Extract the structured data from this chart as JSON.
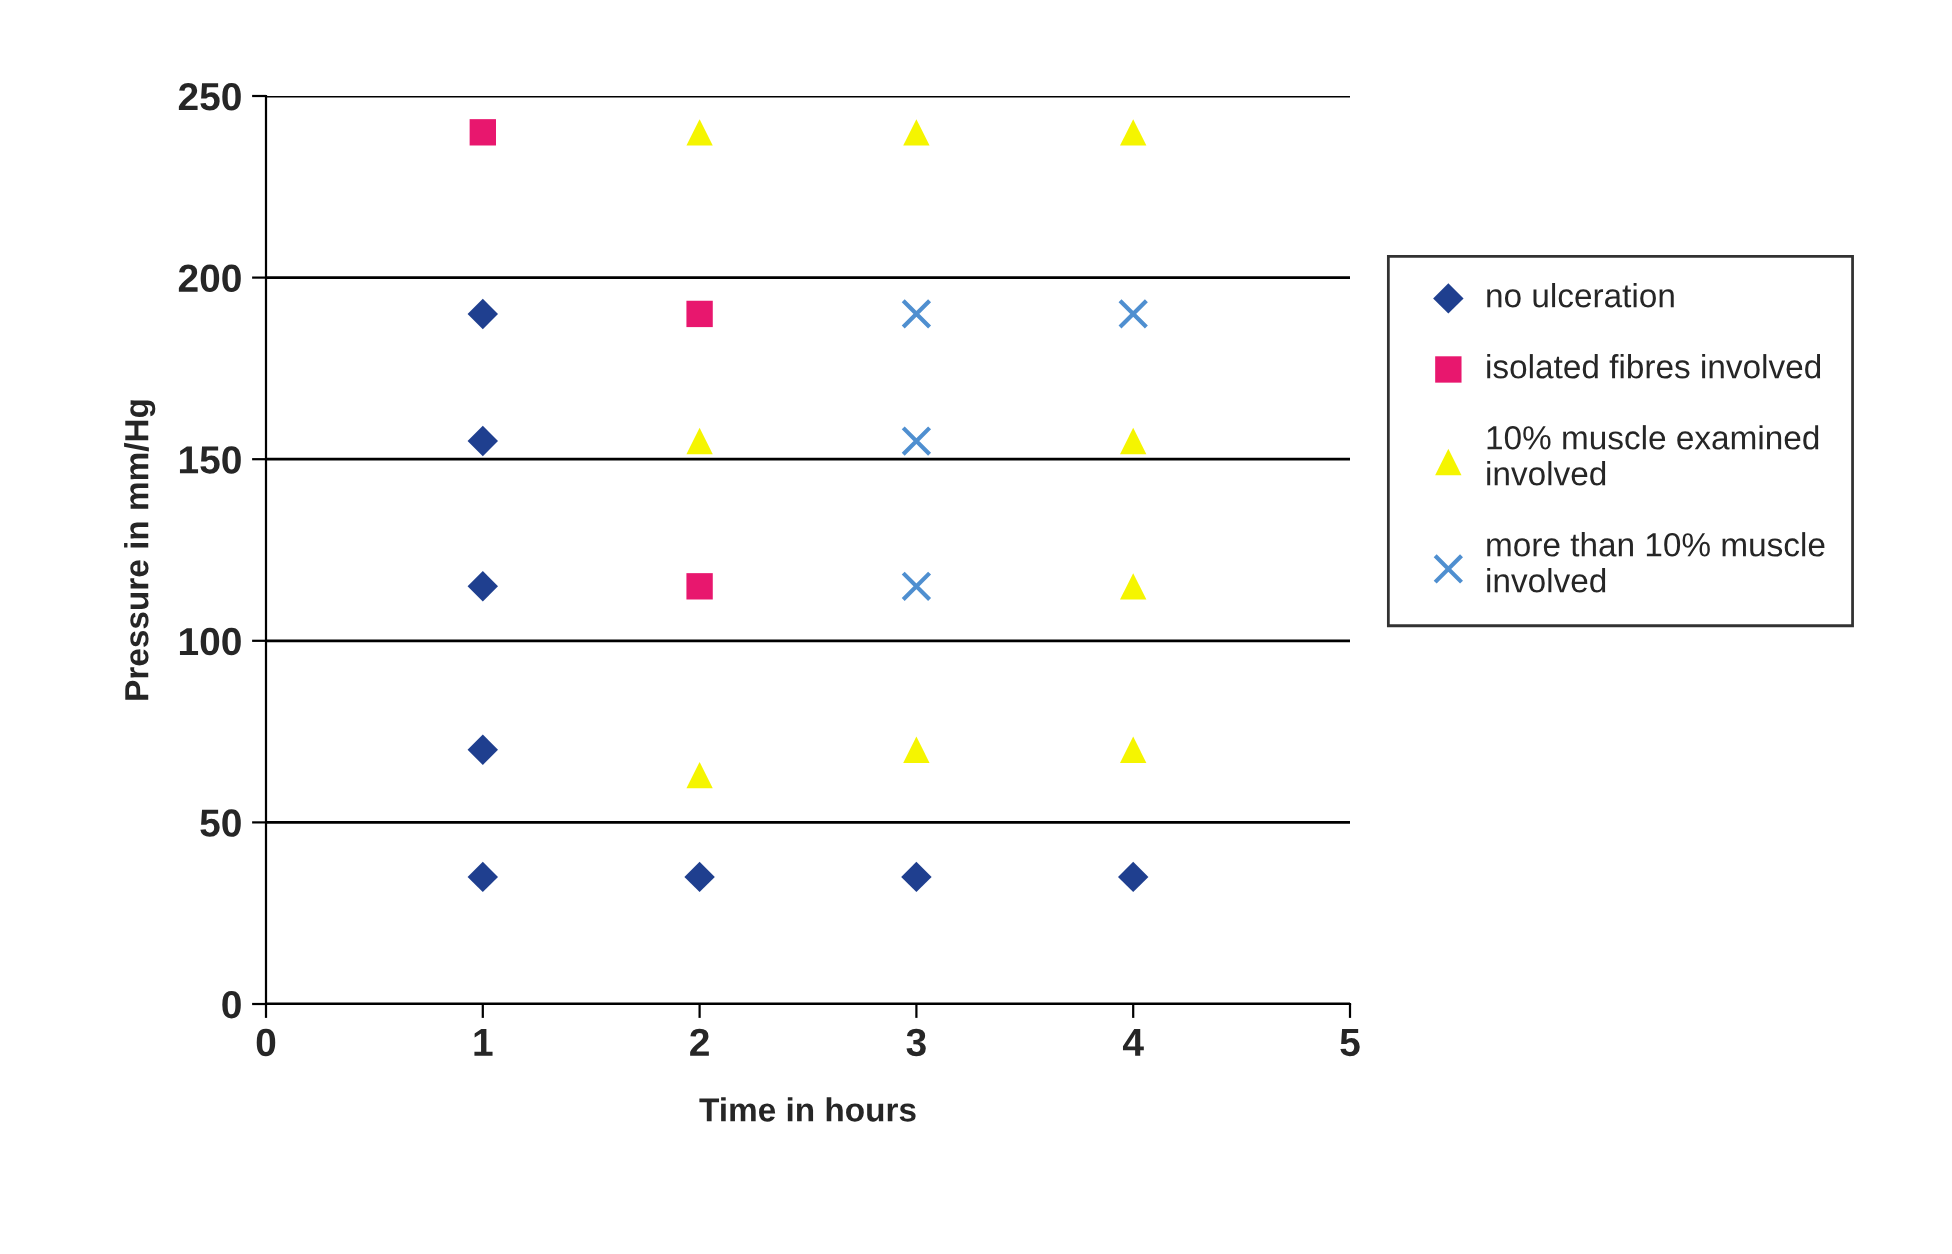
{
  "chart_data": {
    "type": "scatter",
    "xlabel": "Time in hours",
    "ylabel": "Pressure in mm/Hg",
    "xlim": [
      0,
      5
    ],
    "xticks": [
      0,
      1,
      2,
      3,
      4,
      5
    ],
    "ylim": [
      0,
      250
    ],
    "yticks": [
      0,
      50,
      100,
      150,
      200,
      250
    ],
    "grid": "y",
    "legend": "right",
    "series": [
      {
        "name": "no ulceration",
        "color": "#1f3f8f",
        "marker": "diamond",
        "x": [
          1,
          1,
          1,
          1,
          1,
          2,
          3,
          4
        ],
        "values": [
          190,
          155,
          115,
          70,
          35,
          35,
          35,
          35
        ]
      },
      {
        "name": "isolated fibres involved",
        "color": "#e8176e",
        "marker": "square",
        "x": [
          1,
          2,
          2
        ],
        "values": [
          240,
          190,
          115
        ]
      },
      {
        "name": "10% muscle examined\ninvolved",
        "color": "#f5f500",
        "marker": "triangle",
        "x": [
          2,
          3,
          4,
          2,
          4,
          4,
          2,
          3,
          4
        ],
        "values": [
          240,
          240,
          240,
          155,
          155,
          115,
          63,
          70,
          70
        ]
      },
      {
        "name": "more than 10% muscle\ninvolved",
        "color": "#4f8fd0",
        "marker": "cross",
        "x": [
          3,
          4,
          3,
          3
        ],
        "values": [
          190,
          190,
          155,
          115
        ]
      }
    ]
  }
}
